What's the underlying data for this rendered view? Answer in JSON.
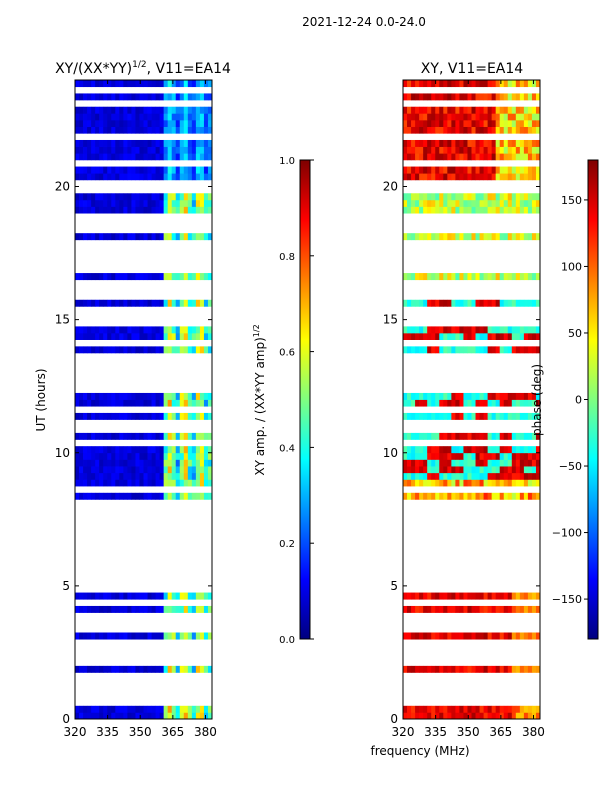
{
  "figure": {
    "suptitle": "2021-12-24 0.0-24.0",
    "shared_xlabel": "frequency (MHz)"
  },
  "chart_data": [
    {
      "type": "heatmap",
      "title": "XY/(XX*YY)^1/2, V11=EA14",
      "title_main": "XY/(XX*YY)",
      "title_exp": "1/2",
      "title_tail": ", V11=EA14",
      "xlabel": "frequency (MHz)",
      "ylabel": "UT (hours)",
      "xlim": [
        320,
        383
      ],
      "ylim": [
        0,
        24
      ],
      "xticks": [
        "320",
        "335",
        "350",
        "365",
        "380"
      ],
      "yticks": [
        "0",
        "5",
        "10",
        "15",
        "20"
      ],
      "colormap": "jet",
      "colorbar": {
        "label": "XY amp. / (XX*YY amp)^1/2",
        "label_main": "XY amp. / (XX*YY amp)",
        "label_exp": "1/2",
        "range": [
          0.0,
          1.0
        ],
        "ticks": [
          "0.0",
          "0.2",
          "0.4",
          "0.6",
          "0.8",
          "1.0"
        ]
      },
      "bright_band_start_mhz": 360,
      "typical_value_low_band": 0.05,
      "typical_value_high_band": 0.45
    },
    {
      "type": "heatmap",
      "title": "XY, V11=EA14",
      "xlabel": "frequency (MHz)",
      "ylabel": "",
      "xlim": [
        320,
        383
      ],
      "ylim": [
        0,
        24
      ],
      "xticks": [
        "320",
        "335",
        "350",
        "365",
        "380"
      ],
      "yticks": [
        "0",
        "5",
        "10",
        "15",
        "20"
      ],
      "colormap": "jet",
      "colorbar": {
        "label": "phase (deg)",
        "range": [
          -180,
          180
        ],
        "ticks": [
          "−150",
          "−100",
          "−50",
          "0",
          "50",
          "100",
          "150"
        ],
        "tick_values": [
          -150,
          -100,
          -50,
          0,
          50,
          100,
          150
        ]
      }
    }
  ],
  "flagged_hours": [
    0.55,
    0.95,
    1.05,
    1.45,
    1.55,
    2.05,
    2.35,
    2.55,
    2.95,
    3.25,
    3.55,
    3.85,
    4.35,
    4.75,
    4.85,
    5.15,
    5.35,
    5.55,
    5.75,
    6.05,
    6.25,
    6.55,
    6.85,
    7.15,
    7.35,
    7.65,
    7.85,
    8.05,
    8.65,
    10.25,
    10.45,
    10.75,
    11.15,
    11.65,
    12.35,
    12.55,
    12.75,
    13.05,
    13.35,
    13.65,
    14.05,
    14.75,
    15.05,
    15.45,
    15.75,
    16.05,
    16.45,
    16.75,
    17.05,
    17.35,
    17.65,
    17.95,
    18.25,
    18.45,
    18.65,
    18.95,
    19.95,
    20.05,
    20.95,
    21.75,
    21.95,
    23.15,
    23.65
  ]
}
